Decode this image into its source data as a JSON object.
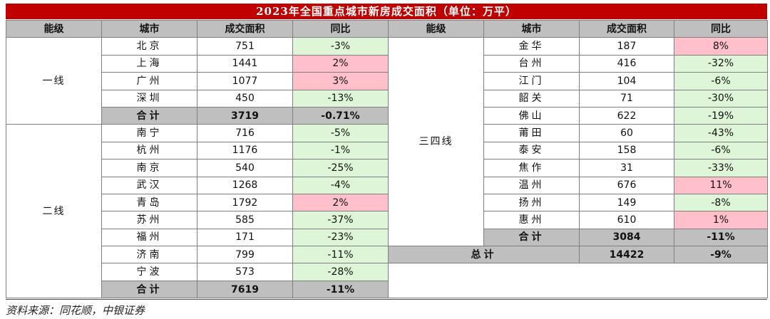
{
  "title": "2023年全国重点城市新房成交面积（单位：万平）",
  "headers": [
    "能级",
    "城市",
    "成交面积",
    "同比",
    "能级",
    "城市",
    "成交面积",
    "同比"
  ],
  "left": {
    "tier1": "一线",
    "tier2": "二线",
    "rows": [
      {
        "city": "北京",
        "area": "751",
        "yoy": "-3%"
      },
      {
        "city": "上海",
        "area": "1441",
        "yoy": "2%"
      },
      {
        "city": "广州",
        "area": "1077",
        "yoy": "3%"
      },
      {
        "city": "深圳",
        "area": "450",
        "yoy": "-13%"
      },
      {
        "city": "合计",
        "area": "3719",
        "yoy": "-0.71%"
      },
      {
        "city": "南宁",
        "area": "716",
        "yoy": "-5%"
      },
      {
        "city": "杭州",
        "area": "1176",
        "yoy": "-1%"
      },
      {
        "city": "南京",
        "area": "540",
        "yoy": "-25%"
      },
      {
        "city": "武汉",
        "area": "1268",
        "yoy": "-4%"
      },
      {
        "city": "青岛",
        "area": "1792",
        "yoy": "2%"
      },
      {
        "city": "苏州",
        "area": "585",
        "yoy": "-37%"
      },
      {
        "city": "福州",
        "area": "171",
        "yoy": "-23%"
      },
      {
        "city": "济南",
        "area": "799",
        "yoy": "-11%"
      },
      {
        "city": "宁波",
        "area": "573",
        "yoy": "-28%"
      },
      {
        "city": "合计",
        "area": "7619",
        "yoy": "-11%"
      }
    ]
  },
  "right": {
    "tier3": "三四线",
    "rows": [
      {
        "city": "金华",
        "area": "187",
        "yoy": "8%"
      },
      {
        "city": "台州",
        "area": "416",
        "yoy": "-32%"
      },
      {
        "city": "江门",
        "area": "104",
        "yoy": "-6%"
      },
      {
        "city": "韶关",
        "area": "71",
        "yoy": "-30%"
      },
      {
        "city": "佛山",
        "area": "622",
        "yoy": "-19%"
      },
      {
        "city": "莆田",
        "area": "60",
        "yoy": "-43%"
      },
      {
        "city": "泰安",
        "area": "158",
        "yoy": "-6%"
      },
      {
        "city": "焦作",
        "area": "31",
        "yoy": "-33%"
      },
      {
        "city": "温州",
        "area": "676",
        "yoy": "11%"
      },
      {
        "city": "扬州",
        "area": "149",
        "yoy": "-8%"
      },
      {
        "city": "惠州",
        "area": "610",
        "yoy": "1%"
      },
      {
        "city": "合计",
        "area": "3084",
        "yoy": "-11%"
      }
    ],
    "total": {
      "label": "总计",
      "area": "14422",
      "yoy": "-9%"
    }
  },
  "source": "资料来源：同花顺，中银证券",
  "colors": {
    "title_bg": "#c00000",
    "header_bg": "#bfbfbf",
    "negative_bg": "#dff5d7",
    "positive_bg": "#ffc0cb"
  }
}
